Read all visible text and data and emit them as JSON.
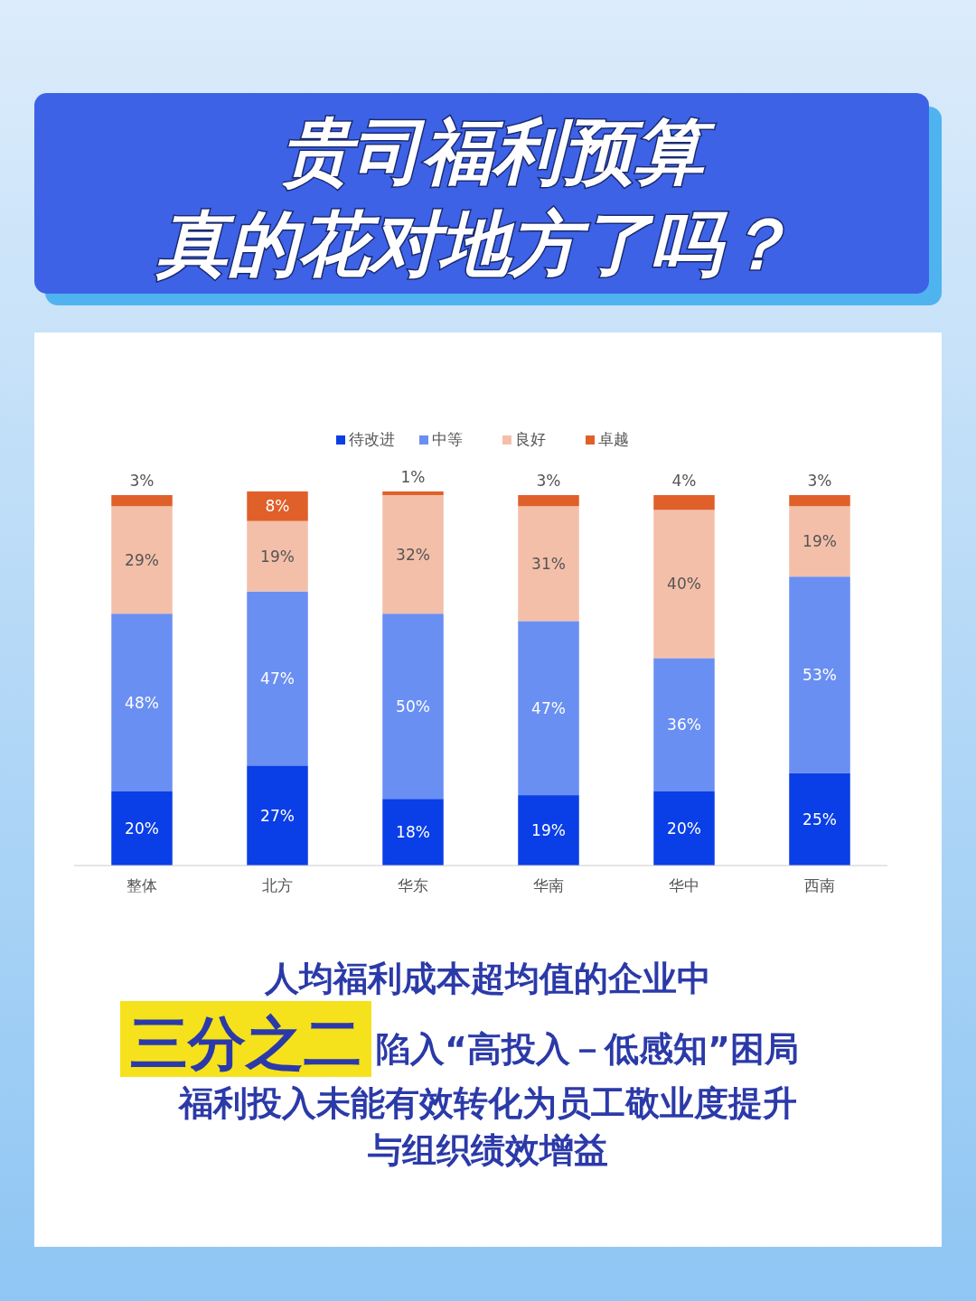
{
  "chart_data": {
    "type": "bar",
    "title": "贵司福利预算",
    "subtitle": "真的花对地方了吗？",
    "stacked": true,
    "legend": "top",
    "categories": [
      "整体",
      "北方",
      "华东",
      "华南",
      "华中",
      "西南"
    ],
    "series": [
      {
        "name": "待改进",
        "color": "#0a3ee6",
        "values": [
          20,
          27,
          18,
          19,
          20,
          25
        ],
        "value_labels": [
          "20%",
          "27%",
          "18%",
          "19%",
          "20%",
          "25%"
        ]
      },
      {
        "name": "中等",
        "color": "#6a8ff2",
        "values": [
          48,
          47,
          50,
          47,
          36,
          53
        ],
        "value_labels": [
          "48%",
          "47%",
          "50%",
          "47%",
          "36%",
          "53%"
        ]
      },
      {
        "name": "良好",
        "color": "#f4bfa9",
        "values": [
          29,
          19,
          32,
          31,
          40,
          19
        ],
        "value_labels": [
          "29%",
          "19%",
          "32%",
          "31%",
          "40%",
          "19%"
        ]
      },
      {
        "name": "卓越",
        "color": "#e0602a",
        "values": [
          3,
          8,
          1,
          3,
          4,
          3
        ],
        "value_labels": [
          "3%",
          "8%",
          "1%",
          "3%",
          "4%",
          "3%"
        ]
      }
    ],
    "annotations": [
      "人均福利成本超均值的企业中",
      "三分之二",
      "陷入“高投入－低感知”困局",
      "福利投入未能有效转化为员工敬业度提升",
      "与组织绩效增益"
    ]
  }
}
